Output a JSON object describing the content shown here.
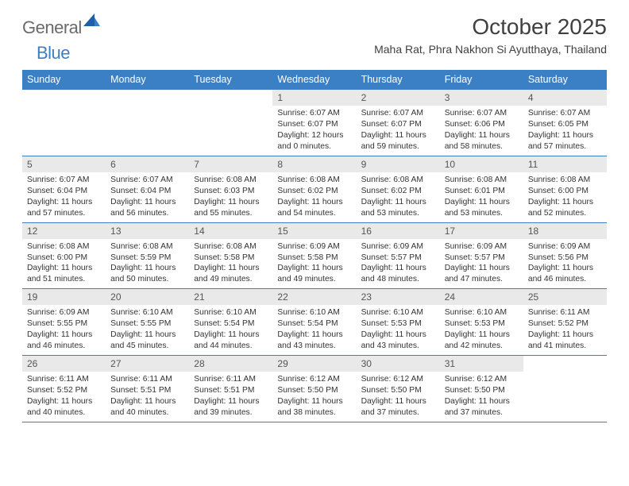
{
  "brand": {
    "word1": "General",
    "word2": "Blue"
  },
  "header": {
    "month_title": "October 2025",
    "location": "Maha Rat, Phra Nakhon Si Ayutthaya, Thailand"
  },
  "colors": {
    "header_bg": "#3b7fc4",
    "daynum_bg": "#e9e9e9",
    "text": "#333333",
    "brand_gray": "#6a6a6a",
    "brand_blue": "#3b7fc4"
  },
  "weekdays": [
    "Sunday",
    "Monday",
    "Tuesday",
    "Wednesday",
    "Thursday",
    "Friday",
    "Saturday"
  ],
  "weeks": [
    {
      "nums": [
        "",
        "",
        "",
        "1",
        "2",
        "3",
        "4"
      ],
      "cells": [
        null,
        null,
        null,
        {
          "sunrise": "Sunrise: 6:07 AM",
          "sunset": "Sunset: 6:07 PM",
          "day1": "Daylight: 12 hours",
          "day2": "and 0 minutes."
        },
        {
          "sunrise": "Sunrise: 6:07 AM",
          "sunset": "Sunset: 6:07 PM",
          "day1": "Daylight: 11 hours",
          "day2": "and 59 minutes."
        },
        {
          "sunrise": "Sunrise: 6:07 AM",
          "sunset": "Sunset: 6:06 PM",
          "day1": "Daylight: 11 hours",
          "day2": "and 58 minutes."
        },
        {
          "sunrise": "Sunrise: 6:07 AM",
          "sunset": "Sunset: 6:05 PM",
          "day1": "Daylight: 11 hours",
          "day2": "and 57 minutes."
        }
      ]
    },
    {
      "nums": [
        "5",
        "6",
        "7",
        "8",
        "9",
        "10",
        "11"
      ],
      "cells": [
        {
          "sunrise": "Sunrise: 6:07 AM",
          "sunset": "Sunset: 6:04 PM",
          "day1": "Daylight: 11 hours",
          "day2": "and 57 minutes."
        },
        {
          "sunrise": "Sunrise: 6:07 AM",
          "sunset": "Sunset: 6:04 PM",
          "day1": "Daylight: 11 hours",
          "day2": "and 56 minutes."
        },
        {
          "sunrise": "Sunrise: 6:08 AM",
          "sunset": "Sunset: 6:03 PM",
          "day1": "Daylight: 11 hours",
          "day2": "and 55 minutes."
        },
        {
          "sunrise": "Sunrise: 6:08 AM",
          "sunset": "Sunset: 6:02 PM",
          "day1": "Daylight: 11 hours",
          "day2": "and 54 minutes."
        },
        {
          "sunrise": "Sunrise: 6:08 AM",
          "sunset": "Sunset: 6:02 PM",
          "day1": "Daylight: 11 hours",
          "day2": "and 53 minutes."
        },
        {
          "sunrise": "Sunrise: 6:08 AM",
          "sunset": "Sunset: 6:01 PM",
          "day1": "Daylight: 11 hours",
          "day2": "and 53 minutes."
        },
        {
          "sunrise": "Sunrise: 6:08 AM",
          "sunset": "Sunset: 6:00 PM",
          "day1": "Daylight: 11 hours",
          "day2": "and 52 minutes."
        }
      ]
    },
    {
      "nums": [
        "12",
        "13",
        "14",
        "15",
        "16",
        "17",
        "18"
      ],
      "cells": [
        {
          "sunrise": "Sunrise: 6:08 AM",
          "sunset": "Sunset: 6:00 PM",
          "day1": "Daylight: 11 hours",
          "day2": "and 51 minutes."
        },
        {
          "sunrise": "Sunrise: 6:08 AM",
          "sunset": "Sunset: 5:59 PM",
          "day1": "Daylight: 11 hours",
          "day2": "and 50 minutes."
        },
        {
          "sunrise": "Sunrise: 6:08 AM",
          "sunset": "Sunset: 5:58 PM",
          "day1": "Daylight: 11 hours",
          "day2": "and 49 minutes."
        },
        {
          "sunrise": "Sunrise: 6:09 AM",
          "sunset": "Sunset: 5:58 PM",
          "day1": "Daylight: 11 hours",
          "day2": "and 49 minutes."
        },
        {
          "sunrise": "Sunrise: 6:09 AM",
          "sunset": "Sunset: 5:57 PM",
          "day1": "Daylight: 11 hours",
          "day2": "and 48 minutes."
        },
        {
          "sunrise": "Sunrise: 6:09 AM",
          "sunset": "Sunset: 5:57 PM",
          "day1": "Daylight: 11 hours",
          "day2": "and 47 minutes."
        },
        {
          "sunrise": "Sunrise: 6:09 AM",
          "sunset": "Sunset: 5:56 PM",
          "day1": "Daylight: 11 hours",
          "day2": "and 46 minutes."
        }
      ]
    },
    {
      "nums": [
        "19",
        "20",
        "21",
        "22",
        "23",
        "24",
        "25"
      ],
      "cells": [
        {
          "sunrise": "Sunrise: 6:09 AM",
          "sunset": "Sunset: 5:55 PM",
          "day1": "Daylight: 11 hours",
          "day2": "and 46 minutes."
        },
        {
          "sunrise": "Sunrise: 6:10 AM",
          "sunset": "Sunset: 5:55 PM",
          "day1": "Daylight: 11 hours",
          "day2": "and 45 minutes."
        },
        {
          "sunrise": "Sunrise: 6:10 AM",
          "sunset": "Sunset: 5:54 PM",
          "day1": "Daylight: 11 hours",
          "day2": "and 44 minutes."
        },
        {
          "sunrise": "Sunrise: 6:10 AM",
          "sunset": "Sunset: 5:54 PM",
          "day1": "Daylight: 11 hours",
          "day2": "and 43 minutes."
        },
        {
          "sunrise": "Sunrise: 6:10 AM",
          "sunset": "Sunset: 5:53 PM",
          "day1": "Daylight: 11 hours",
          "day2": "and 43 minutes."
        },
        {
          "sunrise": "Sunrise: 6:10 AM",
          "sunset": "Sunset: 5:53 PM",
          "day1": "Daylight: 11 hours",
          "day2": "and 42 minutes."
        },
        {
          "sunrise": "Sunrise: 6:11 AM",
          "sunset": "Sunset: 5:52 PM",
          "day1": "Daylight: 11 hours",
          "day2": "and 41 minutes."
        }
      ]
    },
    {
      "nums": [
        "26",
        "27",
        "28",
        "29",
        "30",
        "31",
        ""
      ],
      "cells": [
        {
          "sunrise": "Sunrise: 6:11 AM",
          "sunset": "Sunset: 5:52 PM",
          "day1": "Daylight: 11 hours",
          "day2": "and 40 minutes."
        },
        {
          "sunrise": "Sunrise: 6:11 AM",
          "sunset": "Sunset: 5:51 PM",
          "day1": "Daylight: 11 hours",
          "day2": "and 40 minutes."
        },
        {
          "sunrise": "Sunrise: 6:11 AM",
          "sunset": "Sunset: 5:51 PM",
          "day1": "Daylight: 11 hours",
          "day2": "and 39 minutes."
        },
        {
          "sunrise": "Sunrise: 6:12 AM",
          "sunset": "Sunset: 5:50 PM",
          "day1": "Daylight: 11 hours",
          "day2": "and 38 minutes."
        },
        {
          "sunrise": "Sunrise: 6:12 AM",
          "sunset": "Sunset: 5:50 PM",
          "day1": "Daylight: 11 hours",
          "day2": "and 37 minutes."
        },
        {
          "sunrise": "Sunrise: 6:12 AM",
          "sunset": "Sunset: 5:50 PM",
          "day1": "Daylight: 11 hours",
          "day2": "and 37 minutes."
        },
        null
      ]
    }
  ]
}
